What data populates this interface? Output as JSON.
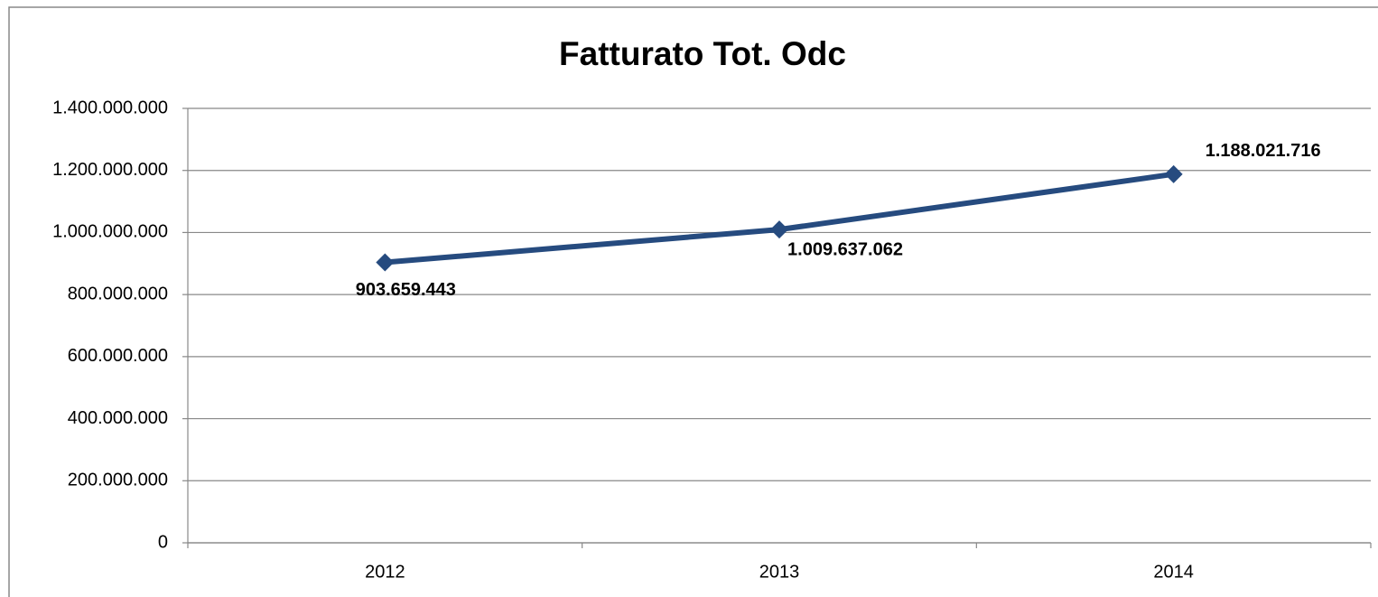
{
  "chart_data": {
    "type": "line",
    "title": "Fatturato Tot. Odc",
    "categories": [
      "2012",
      "2013",
      "2014"
    ],
    "values": [
      903659443,
      1009637062,
      1188021716
    ],
    "value_labels": [
      "903.659.443",
      "1.009.637.062",
      "1.188.021.716"
    ],
    "color": "#264b7f",
    "ylim": [
      0,
      1400000000
    ],
    "yticks": [
      0,
      {
        "value": 200000000,
        "label": "200.000.000"
      },
      {
        "value": 400000000,
        "label": "400.000.000"
      },
      {
        "value": 600000000,
        "label": "600.000.000"
      },
      {
        "value": 800000000,
        "label": "800.000.000"
      },
      {
        "value": 1000000000,
        "label": "1.000.000.000"
      },
      {
        "value": 1200000000,
        "label": "1.200.000.000"
      },
      {
        "value": 1400000000,
        "label": "1.400.000.000"
      }
    ],
    "grid": true
  }
}
